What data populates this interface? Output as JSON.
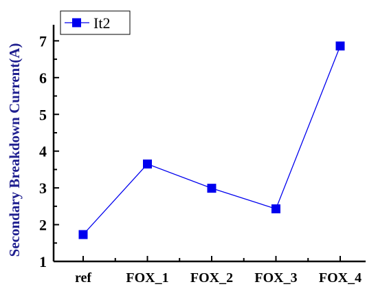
{
  "chart_data": {
    "type": "line",
    "categories": [
      "ref",
      "FOX_1",
      "FOX_2",
      "FOX_3",
      "FOX_4"
    ],
    "series": [
      {
        "name": "It2",
        "values": [
          1.73,
          3.65,
          2.99,
          2.43,
          6.86
        ],
        "color": "#0000ee",
        "marker": "square"
      }
    ],
    "title": "",
    "xlabel": "",
    "ylabel": "Secondary Breakdown Current(A)",
    "ylim": [
      1,
      7.4
    ],
    "yticks": [
      1,
      2,
      3,
      4,
      5,
      6,
      7
    ],
    "grid": false,
    "legend_position": "top-left"
  }
}
